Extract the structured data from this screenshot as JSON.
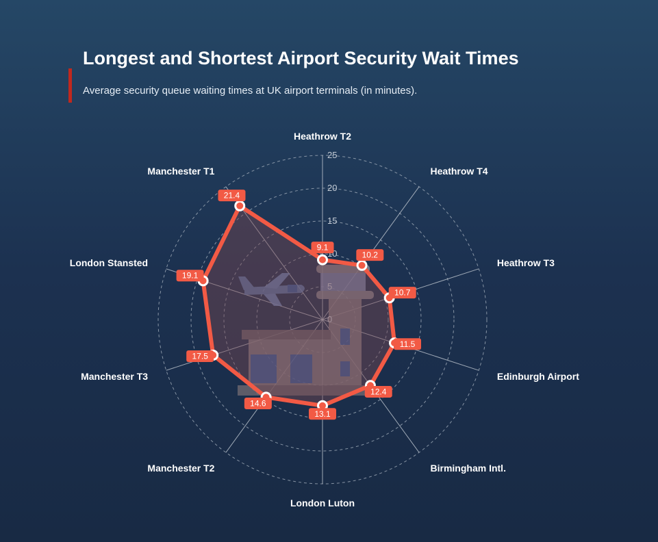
{
  "title": "Longest and Shortest Airport Security Wait Times",
  "subtitle": "Average security queue waiting times at UK airport terminals (in minutes).",
  "colors": {
    "accent": "#c0281e",
    "series_line": "#f25a45",
    "series_fill": "rgba(120,70,80,0.45)",
    "label_bg": "#f25a45",
    "grid": "#9aa6b4"
  },
  "icon": "airport-terminal-and-airplane-illustration",
  "chart_data": {
    "type": "radar",
    "categories": [
      "Heathrow T2",
      "Heathrow T4",
      "Heathrow T3",
      "Edinburgh Airport",
      "Birmingham Intl.",
      "London Luton",
      "Manchester T2",
      "Manchester T3",
      "London Stansted",
      "Manchester T1"
    ],
    "values": [
      9.1,
      10.2,
      10.7,
      11.5,
      12.4,
      13.1,
      14.6,
      17.5,
      19.1,
      21.4
    ],
    "value_labels": [
      "9.1",
      "10.2",
      "10.7",
      "11.5",
      "12.4",
      "13.1",
      "14.6",
      "17.5",
      "19.1",
      "21.4"
    ],
    "radial_ticks": [
      "0",
      "5",
      "10",
      "15",
      "20",
      "25"
    ],
    "rlim": [
      0,
      25
    ],
    "grid": true
  }
}
